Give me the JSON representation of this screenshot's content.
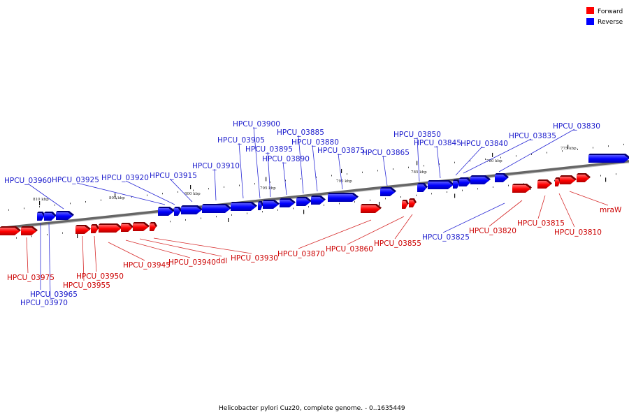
{
  "legend": {
    "forward_label": "Forward",
    "reverse_label": "Reverse",
    "forward_color": "#ff0000",
    "reverse_color": "#0000ff"
  },
  "caption": "Helicobacter pylori Cuz20, complete genome. - 0..1635449",
  "scale_ticks": [
    {
      "label": "810 kbp",
      "kbp": 810
    },
    {
      "label": "805 kbp",
      "kbp": 805
    },
    {
      "label": "800 kbp",
      "kbp": 800
    },
    {
      "label": "795 kbp",
      "kbp": 795
    },
    {
      "label": "790 kbp",
      "kbp": 790
    },
    {
      "label": "785 kbp",
      "kbp": 785
    },
    {
      "label": "780 kbp",
      "kbp": 780
    },
    {
      "label": "775 kbp",
      "kbp": 775
    }
  ],
  "reverse_genes": [
    {
      "name": "HPCU_03960"
    },
    {
      "name": "HPCU_03925"
    },
    {
      "name": "HPCU_03920"
    },
    {
      "name": "HPCU_03915"
    },
    {
      "name": "HPCU_03910"
    },
    {
      "name": "HPCU_03905"
    },
    {
      "name": "HPCU_03900"
    },
    {
      "name": "HPCU_03895"
    },
    {
      "name": "HPCU_03890"
    },
    {
      "name": "HPCU_03885"
    },
    {
      "name": "HPCU_03880"
    },
    {
      "name": "HPCU_03875"
    },
    {
      "name": "HPCU_03865"
    },
    {
      "name": "HPCU_03850"
    },
    {
      "name": "HPCU_03845"
    },
    {
      "name": "HPCU_03840"
    },
    {
      "name": "HPCU_03835"
    },
    {
      "name": "HPCU_03830"
    },
    {
      "name": "HPCU_03825"
    },
    {
      "name": "HPCU_03965"
    },
    {
      "name": "HPCU_03970"
    }
  ],
  "forward_genes": [
    {
      "name": "HPCU_03975"
    },
    {
      "name": "HPCU_03955"
    },
    {
      "name": "HPCU_03950"
    },
    {
      "name": "HPCU_03945"
    },
    {
      "name": "HPCU_03940"
    },
    {
      "name": "ddl"
    },
    {
      "name": "HPCU_03930"
    },
    {
      "name": "HPCU_03870"
    },
    {
      "name": "HPCU_03860"
    },
    {
      "name": "HPCU_03855"
    },
    {
      "name": "HPCU_03820"
    },
    {
      "name": "HPCU_03815"
    },
    {
      "name": "HPCU_03810"
    },
    {
      "name": "mraW"
    }
  ]
}
